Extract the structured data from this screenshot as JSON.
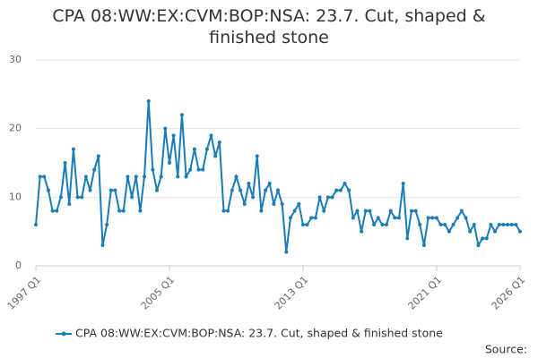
{
  "chart_data": {
    "type": "line",
    "title": "CPA 08:WW:EX:CVM:BOP:NSA: 23.7. Cut, shaped & finished stone",
    "categories": [
      "1997 Q1",
      null,
      null,
      null,
      null,
      null,
      null,
      null,
      null,
      null,
      null,
      null,
      null,
      null,
      null,
      null,
      null,
      null,
      null,
      null,
      null,
      null,
      null,
      null,
      null,
      null,
      null,
      null,
      null,
      null,
      null,
      null,
      "2005 Q1",
      null,
      null,
      null,
      null,
      null,
      null,
      null,
      null,
      null,
      null,
      null,
      null,
      null,
      null,
      null,
      null,
      null,
      null,
      null,
      null,
      null,
      null,
      null,
      null,
      null,
      null,
      null,
      null,
      null,
      null,
      null,
      "2013 Q1",
      null,
      null,
      null,
      null,
      null,
      null,
      null,
      null,
      null,
      null,
      null,
      null,
      null,
      null,
      null,
      null,
      null,
      null,
      null,
      null,
      null,
      null,
      null,
      null,
      null,
      null,
      null,
      null,
      null,
      null,
      null,
      "2021 Q1",
      null,
      null,
      null,
      null,
      null,
      null,
      null,
      null,
      null,
      null,
      null,
      null,
      null,
      null,
      null,
      null,
      null,
      null,
      null,
      "2026 Q1"
    ],
    "series": [
      {
        "name": "CPA 08:WW:EX:CVM:BOP:NSA: 23.7. Cut, shaped & finished stone",
        "color": "#1a7db8",
        "values": [
          6,
          13,
          13,
          11,
          8,
          8,
          10,
          15,
          9,
          17,
          10,
          10,
          13,
          11,
          14,
          16,
          3,
          6,
          11,
          11,
          8,
          8,
          13,
          10,
          13,
          8,
          13,
          24,
          14,
          11,
          13,
          20,
          15,
          19,
          13,
          22,
          13,
          14,
          17,
          14,
          14,
          17,
          19,
          16,
          18,
          8,
          8,
          11,
          13,
          11,
          9,
          12,
          10,
          16,
          8,
          11,
          12,
          9,
          11,
          9,
          2,
          7,
          8,
          9,
          6,
          6,
          7,
          7,
          10,
          8,
          10,
          10,
          11,
          11,
          12,
          11,
          7,
          8,
          5,
          8,
          8,
          6,
          7,
          6,
          6,
          8,
          7,
          7,
          12,
          4,
          8,
          8,
          6,
          3,
          7,
          7,
          7,
          6,
          6,
          5,
          6,
          7,
          8,
          7,
          5,
          6,
          3,
          4,
          4,
          6,
          5,
          6,
          6,
          6,
          6,
          6,
          5
        ]
      }
    ],
    "ylim": [
      0,
      30
    ],
    "yticks": [
      0,
      10,
      20,
      30
    ],
    "grid": true,
    "source": "Source:"
  }
}
